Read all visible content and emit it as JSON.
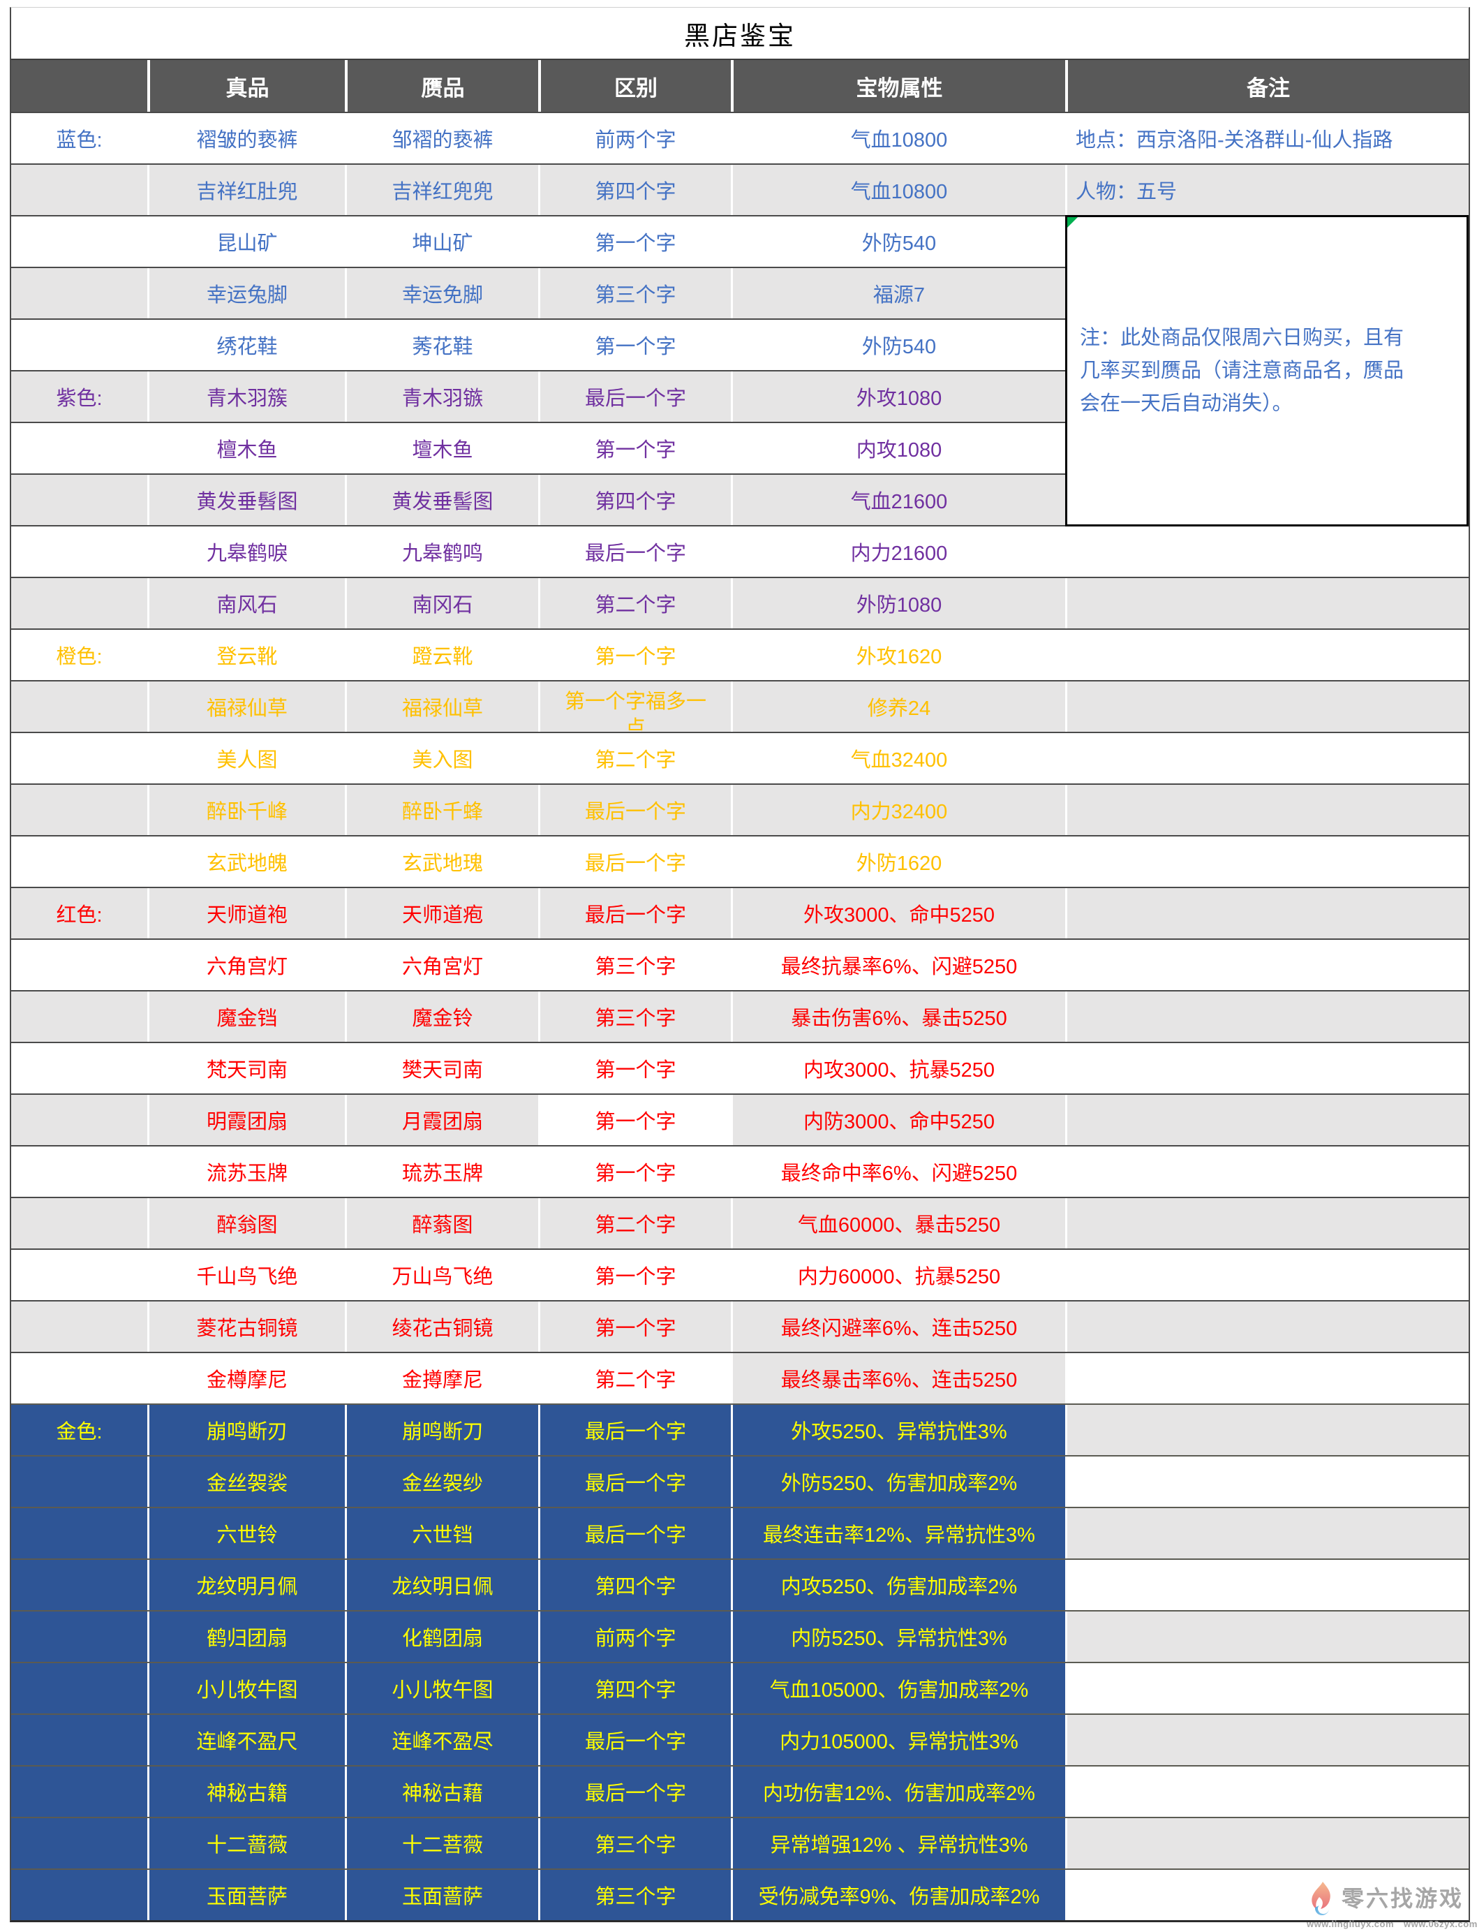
{
  "title": "黑店鉴宝",
  "columns": [
    "",
    "真品",
    "赝品",
    "区别",
    "宝物属性",
    "备注"
  ],
  "palette": {
    "header_bg": "#595959",
    "stripe_bg": "#e6e5e5",
    "blue": "#4472c4",
    "purple": "#7030a0",
    "orange": "#ffc000",
    "red": "#ff0000",
    "gold_text": "#ffff00",
    "gold_bg": "#2e5596",
    "note_text": "#4472c4",
    "comment_flag": "#00b050"
  },
  "note_box": "注：此处商品仅限周六日购买，且有几率买到赝品（请注意商品名，赝品会在一天后自动消失）。",
  "rows": [
    {
      "group": "蓝色:",
      "tier": "blue",
      "genuine": "褶皱的亵裤",
      "fake": "邹褶的亵裤",
      "diff": "前两个字",
      "attr": "气血10800",
      "note": "地点：西京洛阳-关洛群山-仙人指路"
    },
    {
      "group": "",
      "tier": "blue",
      "genuine": "吉祥红肚兜",
      "fake": "吉祥红兜兜",
      "diff": "第四个字",
      "attr": "气血10800",
      "note": "人物：五号"
    },
    {
      "group": "",
      "tier": "blue",
      "genuine": "昆山矿",
      "fake": "坤山矿",
      "diff": "第一个字",
      "attr": "外防540",
      "note": ""
    },
    {
      "group": "",
      "tier": "blue",
      "genuine": "幸运兔脚",
      "fake": "幸运免脚",
      "diff": "第三个字",
      "attr": "福源7",
      "note": ""
    },
    {
      "group": "",
      "tier": "blue",
      "genuine": "绣花鞋",
      "fake": "莠花鞋",
      "diff": "第一个字",
      "attr": "外防540",
      "note": ""
    },
    {
      "group": "紫色:",
      "tier": "purple",
      "genuine": "青木羽簇",
      "fake": "青木羽镞",
      "diff": "最后一个字",
      "attr": "外攻1080",
      "note": ""
    },
    {
      "group": "",
      "tier": "purple",
      "genuine": "檀木鱼",
      "fake": "壇木鱼",
      "diff": "第一个字",
      "attr": "内攻1080",
      "note": ""
    },
    {
      "group": "",
      "tier": "purple",
      "genuine": "黄发垂髫图",
      "fake": "黄发垂髻图",
      "diff": "第四个字",
      "attr": "气血21600",
      "note": ""
    },
    {
      "group": "",
      "tier": "purple",
      "genuine": "九皋鹤唳",
      "fake": "九皋鹤鸣",
      "diff": "最后一个字",
      "attr": "内力21600",
      "note": ""
    },
    {
      "group": "",
      "tier": "purple",
      "genuine": "南风石",
      "fake": "南冈石",
      "diff": "第二个字",
      "attr": "外防1080",
      "note": ""
    },
    {
      "group": "橙色:",
      "tier": "orange",
      "genuine": "登云靴",
      "fake": "蹬云靴",
      "diff": "第一个字",
      "attr": "外攻1620",
      "note": ""
    },
    {
      "group": "",
      "tier": "orange",
      "genuine": "福禄仙草",
      "fake": "福禄仙草",
      "diff": "第一个字福多一点",
      "attr": "修养24",
      "note": ""
    },
    {
      "group": "",
      "tier": "orange",
      "genuine": "美人图",
      "fake": "美入图",
      "diff": "第二个字",
      "attr": "气血32400",
      "note": ""
    },
    {
      "group": "",
      "tier": "orange",
      "genuine": "醉卧千峰",
      "fake": "醉卧千蜂",
      "diff": "最后一个字",
      "attr": "内力32400",
      "note": ""
    },
    {
      "group": "",
      "tier": "orange",
      "genuine": "玄武地魄",
      "fake": "玄武地瑰",
      "diff": "最后一个字",
      "attr": "外防1620",
      "note": ""
    },
    {
      "group": "红色:",
      "tier": "red",
      "genuine": "天师道袍",
      "fake": "天师道疱",
      "diff": "最后一个字",
      "attr": "外攻3000、命中5250",
      "note": ""
    },
    {
      "group": "",
      "tier": "red",
      "genuine": "六角宫灯",
      "fake": "六角宮灯",
      "diff": "第三个字",
      "attr": "最终抗暴率6%、闪避5250",
      "note": ""
    },
    {
      "group": "",
      "tier": "red",
      "genuine": "魔金铛",
      "fake": "魔金铃",
      "diff": "第三个字",
      "attr": "暴击伤害6%、暴击5250",
      "note": ""
    },
    {
      "group": "",
      "tier": "red",
      "genuine": "梵天司南",
      "fake": "樊天司南",
      "diff": "第一个字",
      "attr": "内攻3000、抗暴5250",
      "note": ""
    },
    {
      "group": "",
      "tier": "red",
      "genuine": "明霞团扇",
      "fake": "月霞团扇",
      "diff": "第一个字",
      "attr": "内防3000、命中5250",
      "note": "",
      "diff_bg": "white"
    },
    {
      "group": "",
      "tier": "red",
      "genuine": "流苏玉牌",
      "fake": "琉苏玉牌",
      "diff": "第一个字",
      "attr": "最终命中率6%、闪避5250",
      "note": ""
    },
    {
      "group": "",
      "tier": "red",
      "genuine": "醉翁图",
      "fake": "醉蓊图",
      "diff": "第二个字",
      "attr": "气血60000、暴击5250",
      "note": ""
    },
    {
      "group": "",
      "tier": "red",
      "genuine": "千山鸟飞绝",
      "fake": "万山鸟飞绝",
      "diff": "第一个字",
      "attr": "内力60000、抗暴5250",
      "note": ""
    },
    {
      "group": "",
      "tier": "red",
      "genuine": "菱花古铜镜",
      "fake": "绫花古铜镜",
      "diff": "第一个字",
      "attr": "最终闪避率6%、连击5250",
      "note": ""
    },
    {
      "group": "",
      "tier": "red",
      "genuine": "金樽摩尼",
      "fake": "金撙摩尼",
      "diff": "第二个字",
      "attr": "最终暴击率6%、连击5250",
      "note": "",
      "attr_bg": "gray"
    },
    {
      "group": "金色:",
      "tier": "gold",
      "genuine": "崩鸣断刃",
      "fake": "崩鸣断刀",
      "diff": "最后一个字",
      "attr": "外攻5250、异常抗性3%",
      "note": ""
    },
    {
      "group": "",
      "tier": "gold",
      "genuine": "金丝袈裟",
      "fake": "金丝袈纱",
      "diff": "最后一个字",
      "attr": "外防5250、伤害加成率2%",
      "note": ""
    },
    {
      "group": "",
      "tier": "gold",
      "genuine": "六世铃",
      "fake": "六世铛",
      "diff": "最后一个字",
      "attr": "最终连击率12%、异常抗性3%",
      "note": ""
    },
    {
      "group": "",
      "tier": "gold",
      "genuine": "龙纹明月佩",
      "fake": "龙纹明日佩",
      "diff": "第四个字",
      "attr": "内攻5250、伤害加成率2%",
      "note": ""
    },
    {
      "group": "",
      "tier": "gold",
      "genuine": "鹤归团扇",
      "fake": "化鹤团扇",
      "diff": "前两个字",
      "attr": "内防5250、异常抗性3%",
      "note": ""
    },
    {
      "group": "",
      "tier": "gold",
      "genuine": "小儿牧牛图",
      "fake": "小儿牧午图",
      "diff": "第四个字",
      "attr": "气血105000、伤害加成率2%",
      "note": ""
    },
    {
      "group": "",
      "tier": "gold",
      "genuine": "连峰不盈尺",
      "fake": "连峰不盈尽",
      "diff": "最后一个字",
      "attr": "内力105000、异常抗性3%",
      "note": ""
    },
    {
      "group": "",
      "tier": "gold",
      "genuine": "神秘古籍",
      "fake": "神秘古藉",
      "diff": "最后一个字",
      "attr": "内功伤害12%、伤害加成率2%",
      "note": ""
    },
    {
      "group": "",
      "tier": "gold",
      "genuine": "十二蔷薇",
      "fake": "十二菩薇",
      "diff": "第三个字",
      "attr": "异常增强12% 、异常抗性3%",
      "note": ""
    },
    {
      "group": "",
      "tier": "gold",
      "genuine": "玉面菩萨",
      "fake": "玉面蔷萨",
      "diff": "第三个字",
      "attr": "受伤减免率9%、伤害加成率2%",
      "note": ""
    }
  ],
  "watermark": {
    "brand": "零六找游戏",
    "url1": "www.lingliuyx.com",
    "url2": "www.06zyx.com"
  }
}
